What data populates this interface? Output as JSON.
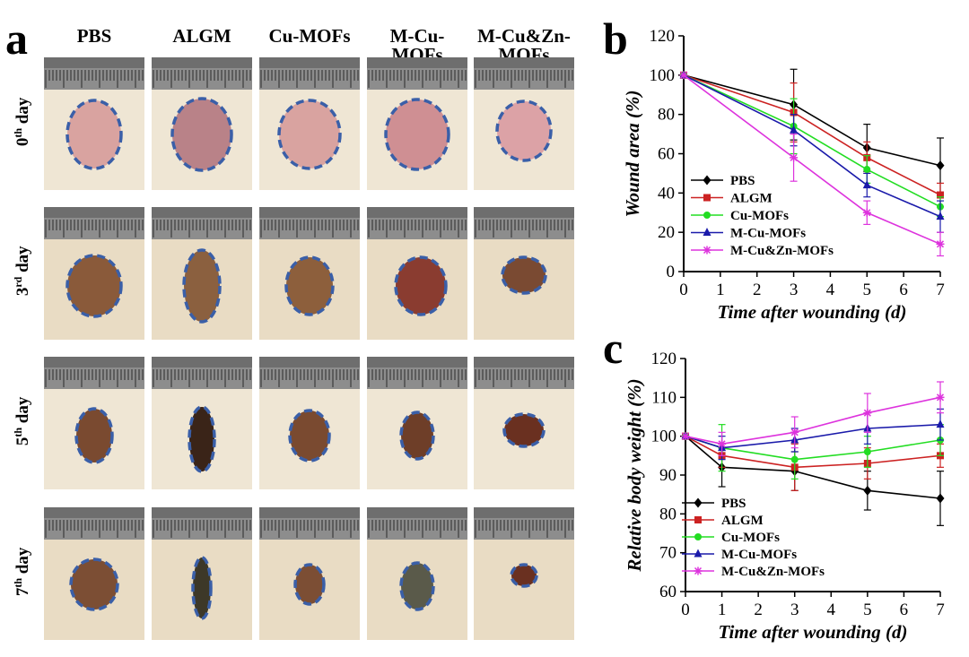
{
  "panel_a": {
    "letter": "a",
    "columns": [
      "PBS",
      "ALGM",
      "Cu-MOFs",
      "M-Cu-MOFs",
      "M-Cu&Zn-MOFs"
    ],
    "column_headers": [
      {
        "line1": "PBS",
        "line2": ""
      },
      {
        "line1": "ALGM",
        "line2": ""
      },
      {
        "line1": "Cu-MOFs",
        "line2": ""
      },
      {
        "line1": "M-Cu-",
        "line2": "MOFs"
      },
      {
        "line1": "M-Cu&Zn-",
        "line2": "MOFs"
      }
    ],
    "rows": [
      {
        "num": "0",
        "sup": "th",
        "word": "day"
      },
      {
        "num": "3",
        "sup": "rd",
        "word": "day"
      },
      {
        "num": "5",
        "sup": "th",
        "word": "day"
      },
      {
        "num": "7",
        "sup": "th",
        "word": "day"
      }
    ],
    "wound_outline_color": "#3a5fa8"
  },
  "chart_data": [
    {
      "panel": "b",
      "type": "line",
      "xlabel": "Time after wounding (d)",
      "ylabel": "Wound area (%)",
      "x": [
        0,
        3,
        5,
        7
      ],
      "xlim": [
        0,
        7
      ],
      "ylim": [
        0,
        120
      ],
      "xticks": [
        0,
        1,
        2,
        3,
        4,
        5,
        6,
        7
      ],
      "yticks": [
        0,
        20,
        40,
        60,
        80,
        100,
        120
      ],
      "legend": "bottom-left",
      "series": [
        {
          "name": "PBS",
          "color": "#000000",
          "marker": "diamond",
          "values": [
            100,
            85,
            63,
            54
          ],
          "errors": [
            0,
            18,
            12,
            14
          ]
        },
        {
          "name": "ALGM",
          "color": "#cc2222",
          "marker": "square",
          "values": [
            100,
            81,
            58,
            39
          ],
          "errors": [
            0,
            15,
            8,
            6
          ]
        },
        {
          "name": "Cu-MOFs",
          "color": "#22dd22",
          "marker": "circle",
          "values": [
            100,
            74,
            52,
            33
          ],
          "errors": [
            0,
            14,
            7,
            5
          ]
        },
        {
          "name": "M-Cu-MOFs",
          "color": "#1a1aaa",
          "marker": "triangle",
          "values": [
            100,
            72,
            44,
            28
          ],
          "errors": [
            0,
            8,
            6,
            8
          ]
        },
        {
          "name": "M-Cu&Zn-MOFs",
          "color": "#dd33dd",
          "marker": "star",
          "values": [
            100,
            58,
            30,
            14
          ],
          "errors": [
            0,
            12,
            6,
            6
          ]
        }
      ]
    },
    {
      "panel": "c",
      "type": "line",
      "xlabel": "Time after wounding (d)",
      "ylabel": "Relative body weight (%)",
      "x": [
        0,
        1,
        3,
        5,
        7
      ],
      "xlim": [
        0,
        7
      ],
      "ylim": [
        60,
        120
      ],
      "xticks": [
        0,
        1,
        2,
        3,
        4,
        5,
        6,
        7
      ],
      "yticks": [
        60,
        70,
        80,
        90,
        100,
        110,
        120
      ],
      "legend": "bottom-left",
      "series": [
        {
          "name": "PBS",
          "color": "#000000",
          "marker": "diamond",
          "values": [
            100,
            92,
            91,
            86,
            84
          ],
          "errors": [
            0,
            5,
            5,
            5,
            7
          ]
        },
        {
          "name": "ALGM",
          "color": "#cc2222",
          "marker": "square",
          "values": [
            100,
            95,
            92,
            93,
            95
          ],
          "errors": [
            0,
            3,
            6,
            4,
            3
          ]
        },
        {
          "name": "Cu-MOFs",
          "color": "#22dd22",
          "marker": "circle",
          "values": [
            100,
            97,
            94,
            96,
            99
          ],
          "errors": [
            0,
            6,
            5,
            4,
            4
          ]
        },
        {
          "name": "M-Cu-MOFs",
          "color": "#1a1aaa",
          "marker": "triangle",
          "values": [
            100,
            97,
            99,
            102,
            103
          ],
          "errors": [
            0,
            3,
            3,
            4,
            4
          ]
        },
        {
          "name": "M-Cu&Zn-MOFs",
          "color": "#dd33dd",
          "marker": "star",
          "values": [
            100,
            98,
            101,
            106,
            110
          ],
          "errors": [
            0,
            3,
            4,
            5,
            4
          ]
        }
      ]
    }
  ],
  "panel_b": {
    "letter": "b"
  },
  "panel_c": {
    "letter": "c"
  }
}
